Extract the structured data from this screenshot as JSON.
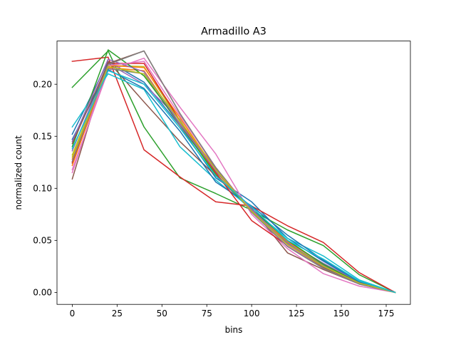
{
  "chart_data": {
    "type": "line",
    "title": "Armadillo A3",
    "xlabel": "bins",
    "ylabel": "normalized count",
    "xlim": [
      -8.5,
      188.5
    ],
    "ylim": [
      -0.0115,
      0.2415
    ],
    "xticks": [
      0,
      25,
      50,
      75,
      100,
      125,
      150,
      175
    ],
    "xtick_labels": [
      "0",
      "25",
      "50",
      "75",
      "100",
      "125",
      "150",
      "175"
    ],
    "yticks": [
      0.0,
      0.05,
      0.1,
      0.15,
      0.2
    ],
    "ytick_labels": [
      "0.00",
      "0.05",
      "0.10",
      "0.15",
      "0.20"
    ],
    "grid": false,
    "x": [
      0,
      20,
      40,
      60,
      80,
      100,
      120,
      140,
      160,
      180
    ],
    "series": [
      {
        "color": "#1f77b4",
        "values": [
          0.152,
          0.222,
          0.202,
          0.16,
          0.11,
          0.087,
          0.052,
          0.03,
          0.01,
          0.0
        ]
      },
      {
        "color": "#ff7f0e",
        "values": [
          0.128,
          0.216,
          0.213,
          0.162,
          0.12,
          0.077,
          0.047,
          0.026,
          0.009,
          0.0
        ]
      },
      {
        "color": "#2ca02c",
        "values": [
          0.197,
          0.232,
          0.159,
          0.11,
          0.095,
          0.079,
          0.06,
          0.045,
          0.017,
          0.0
        ]
      },
      {
        "color": "#d62728",
        "values": [
          0.222,
          0.226,
          0.137,
          0.111,
          0.087,
          0.083,
          0.064,
          0.048,
          0.019,
          0.0
        ]
      },
      {
        "color": "#9467bd",
        "values": [
          0.136,
          0.22,
          0.2,
          0.166,
          0.112,
          0.079,
          0.048,
          0.028,
          0.01,
          0.0
        ]
      },
      {
        "color": "#8c564b",
        "values": [
          0.109,
          0.222,
          0.183,
          0.145,
          0.112,
          0.081,
          0.038,
          0.022,
          0.008,
          0.0
        ]
      },
      {
        "color": "#e377c2",
        "values": [
          0.118,
          0.213,
          0.225,
          0.178,
          0.133,
          0.075,
          0.042,
          0.018,
          0.006,
          0.0
        ]
      },
      {
        "color": "#7f7f7f",
        "values": [
          0.124,
          0.215,
          0.21,
          0.16,
          0.116,
          0.079,
          0.047,
          0.026,
          0.009,
          0.0
        ]
      },
      {
        "color": "#bcbd22",
        "values": [
          0.132,
          0.218,
          0.217,
          0.164,
          0.114,
          0.078,
          0.046,
          0.025,
          0.008,
          0.0
        ]
      },
      {
        "color": "#17becf",
        "values": [
          0.159,
          0.21,
          0.195,
          0.14,
          0.108,
          0.08,
          0.052,
          0.035,
          0.012,
          0.0
        ]
      },
      {
        "color": "#1f77b4",
        "values": [
          0.147,
          0.214,
          0.196,
          0.155,
          0.106,
          0.083,
          0.055,
          0.031,
          0.01,
          0.0
        ]
      },
      {
        "color": "#ff7f0e",
        "values": [
          0.122,
          0.218,
          0.216,
          0.168,
          0.117,
          0.078,
          0.049,
          0.027,
          0.009,
          0.0
        ]
      },
      {
        "color": "#2ca02c",
        "values": [
          0.14,
          0.233,
          0.208,
          0.162,
          0.113,
          0.08,
          0.05,
          0.027,
          0.009,
          0.0
        ]
      },
      {
        "color": "#d62728",
        "values": [
          0.125,
          0.22,
          0.22,
          0.165,
          0.115,
          0.069,
          0.045,
          0.024,
          0.009,
          0.0
        ]
      },
      {
        "color": "#9467bd",
        "values": [
          0.145,
          0.224,
          0.212,
          0.162,
          0.117,
          0.08,
          0.046,
          0.025,
          0.008,
          0.0
        ]
      },
      {
        "color": "#8c564b",
        "values": [
          0.143,
          0.22,
          0.232,
          0.172,
          0.119,
          0.078,
          0.046,
          0.024,
          0.008,
          0.0
        ]
      },
      {
        "color": "#e377c2",
        "values": [
          0.115,
          0.218,
          0.222,
          0.17,
          0.12,
          0.078,
          0.045,
          0.023,
          0.008,
          0.0
        ]
      },
      {
        "color": "#7f7f7f",
        "values": [
          0.126,
          0.219,
          0.232,
          0.172,
          0.12,
          0.077,
          0.044,
          0.023,
          0.008,
          0.0
        ]
      },
      {
        "color": "#bcbd22",
        "values": [
          0.13,
          0.217,
          0.21,
          0.165,
          0.118,
          0.078,
          0.046,
          0.025,
          0.009,
          0.0
        ]
      },
      {
        "color": "#17becf",
        "values": [
          0.138,
          0.213,
          0.2,
          0.158,
          0.112,
          0.082,
          0.05,
          0.032,
          0.011,
          0.0
        ]
      }
    ]
  }
}
